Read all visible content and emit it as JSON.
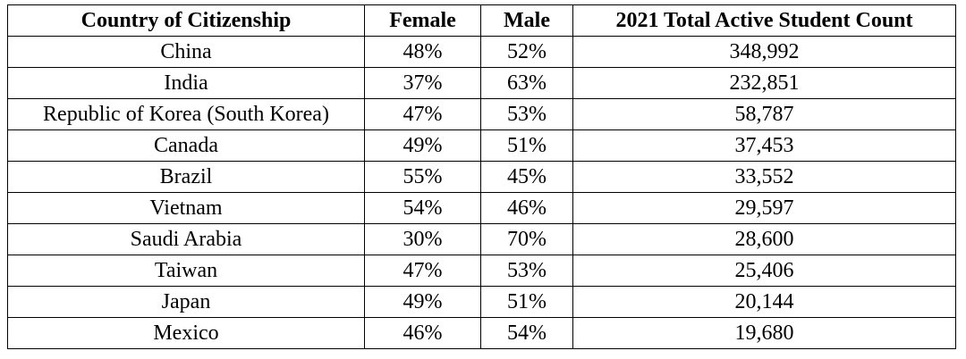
{
  "table": {
    "header": [
      "Country of Citizenship",
      "Female",
      "Male",
      "2021 Total Active Student Count"
    ],
    "rows": [
      [
        "China",
        "48%",
        "52%",
        "348,992"
      ],
      [
        "India",
        "37%",
        "63%",
        "232,851"
      ],
      [
        "Republic of Korea (South Korea)",
        "47%",
        "53%",
        "58,787"
      ],
      [
        "Canada",
        "49%",
        "51%",
        "37,453"
      ],
      [
        "Brazil",
        "55%",
        "45%",
        "33,552"
      ],
      [
        "Vietnam",
        "54%",
        "46%",
        "29,597"
      ],
      [
        "Saudi Arabia",
        "30%",
        "70%",
        "28,600"
      ],
      [
        "Taiwan",
        "47%",
        "53%",
        "25,406"
      ],
      [
        "Japan",
        "49%",
        "51%",
        "20,144"
      ],
      [
        "Mexico",
        "46%",
        "54%",
        "19,680"
      ]
    ]
  }
}
